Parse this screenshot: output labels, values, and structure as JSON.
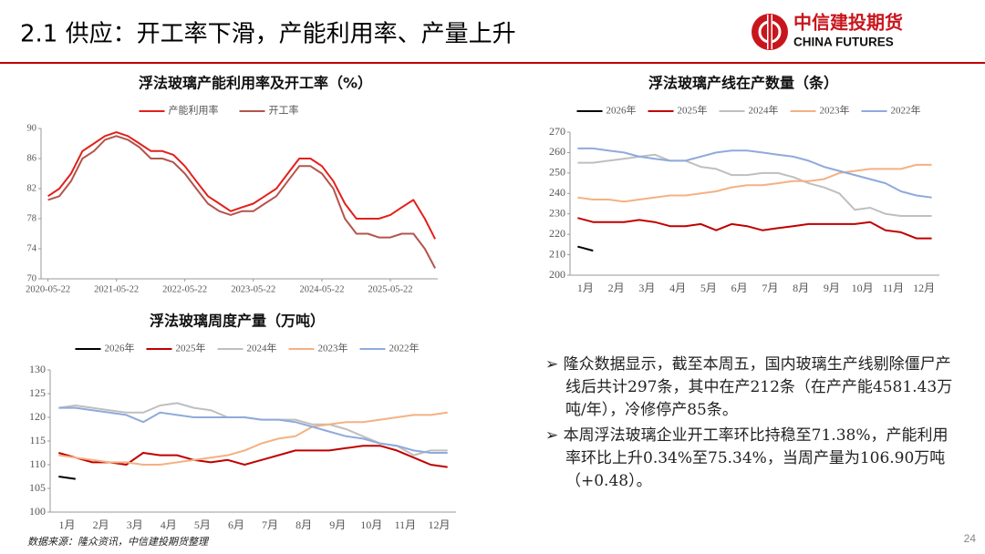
{
  "header": {
    "title": "2.1 供应：开工率下滑，产能利用率、产量上升",
    "logo_cn": "中信建投期货",
    "logo_en": "CHINA FUTURES"
  },
  "chart_data": [
    {
      "type": "line",
      "title": "浮法玻璃产能利用率及开工率（%）",
      "legend": "top",
      "x": [
        "2020-05-22",
        "2020-07-22",
        "2020-09-22",
        "2020-11-22",
        "2021-01-22",
        "2021-03-22",
        "2021-05-22",
        "2021-07-22",
        "2021-09-22",
        "2021-11-22",
        "2022-01-22",
        "2022-03-22",
        "2022-05-22",
        "2022-07-22",
        "2022-09-22",
        "2022-11-22",
        "2023-01-22",
        "2023-03-22",
        "2023-05-22",
        "2023-07-22",
        "2023-09-22",
        "2023-11-22",
        "2024-01-22",
        "2024-03-22",
        "2024-05-22",
        "2024-07-22",
        "2024-09-22",
        "2024-11-22",
        "2025-01-22",
        "2025-03-22",
        "2025-05-22",
        "2025-07-22",
        "2025-09-22",
        "2025-11-22",
        "2026-01-16"
      ],
      "xlim": [
        "2020-04-15",
        "2026-01-30"
      ],
      "xticks": [
        "2020-05-22",
        "2021-05-22",
        "2022-05-22",
        "2023-05-22",
        "2024-05-22",
        "2025-05-22"
      ],
      "ylim": [
        70,
        90
      ],
      "yticks": [
        70,
        74,
        78,
        82,
        86,
        90
      ],
      "series": [
        {
          "name": "产能利用率",
          "color": "#e3201b",
          "values": [
            81,
            82,
            84,
            87,
            88,
            89,
            89.5,
            89,
            88,
            87,
            87,
            86.5,
            85,
            83,
            81,
            80,
            79,
            79.5,
            80,
            81,
            82,
            84,
            86,
            86,
            85,
            83,
            80,
            78,
            78,
            78,
            78.5,
            79.5,
            80.5,
            78,
            75.3
          ]
        },
        {
          "name": "开工率",
          "color": "#b4544c",
          "values": [
            80.5,
            81,
            83,
            86,
            87,
            88.5,
            89,
            88.5,
            87.5,
            86,
            86,
            85.5,
            84,
            82,
            80,
            79,
            78.5,
            79,
            79,
            80,
            81,
            83,
            85,
            85,
            84,
            82,
            78,
            76,
            76,
            75.5,
            75.5,
            76,
            76,
            74,
            71.4
          ]
        }
      ]
    },
    {
      "type": "line",
      "title": "浮法玻璃产线在产数量（条）",
      "legend": "top",
      "categories": [
        "1月",
        null,
        "2月",
        null,
        "3月",
        null,
        "4月",
        null,
        "5月",
        null,
        "6月",
        null,
        "7月",
        null,
        "8月",
        null,
        "9月",
        null,
        "10月",
        null,
        "11月",
        null,
        "12月",
        null
      ],
      "ylim": [
        200,
        270
      ],
      "yticks": [
        200,
        210,
        220,
        230,
        240,
        250,
        260,
        270
      ],
      "series": [
        {
          "name": "2026年",
          "color": "#000000",
          "values": [
            214,
            212,
            null,
            null,
            null,
            null,
            null,
            null,
            null,
            null,
            null,
            null,
            null,
            null,
            null,
            null,
            null,
            null,
            null,
            null,
            null,
            null,
            null,
            null
          ]
        },
        {
          "name": "2025年",
          "color": "#c00000",
          "values": [
            228,
            226,
            226,
            226,
            227,
            226,
            224,
            224,
            225,
            222,
            225,
            224,
            222,
            223,
            224,
            225,
            225,
            225,
            225,
            226,
            222,
            221,
            218,
            218
          ]
        },
        {
          "name": "2024年",
          "color": "#bfbfbf",
          "values": [
            255,
            255,
            256,
            257,
            258,
            259,
            256,
            256,
            253,
            252,
            249,
            249,
            250,
            250,
            248,
            245,
            243,
            240,
            232,
            233,
            230,
            229,
            229,
            229
          ]
        },
        {
          "name": "2023年",
          "color": "#f4b183",
          "values": [
            238,
            237,
            237,
            236,
            237,
            238,
            239,
            239,
            240,
            241,
            243,
            244,
            244,
            245,
            246,
            246,
            247,
            250,
            251,
            252,
            252,
            252,
            254,
            254
          ]
        },
        {
          "name": "2022年",
          "color": "#8faadc",
          "values": [
            262,
            262,
            261,
            260,
            258,
            257,
            256,
            256,
            258,
            260,
            261,
            261,
            260,
            259,
            258,
            256,
            253,
            251,
            249,
            247,
            245,
            241,
            239,
            238
          ]
        }
      ]
    },
    {
      "type": "line",
      "title": "浮法玻璃周度产量（万吨）",
      "legend": "top",
      "categories": [
        "1月",
        null,
        "2月",
        null,
        "3月",
        null,
        "4月",
        null,
        "5月",
        null,
        "6月",
        null,
        "7月",
        null,
        "8月",
        null,
        "9月",
        null,
        "10月",
        null,
        "11月",
        null,
        "12月",
        null
      ],
      "ylim": [
        100,
        130
      ],
      "yticks": [
        100,
        105,
        110,
        115,
        120,
        125,
        130
      ],
      "series": [
        {
          "name": "2026年",
          "color": "#000000",
          "values": [
            107.5,
            107,
            null,
            null,
            null,
            null,
            null,
            null,
            null,
            null,
            null,
            null,
            null,
            null,
            null,
            null,
            null,
            null,
            null,
            null,
            null,
            null,
            null,
            null
          ]
        },
        {
          "name": "2025年",
          "color": "#c00000",
          "values": [
            112.5,
            111.5,
            110.5,
            110.5,
            110,
            112.5,
            112,
            112,
            111,
            110.5,
            111,
            110,
            111,
            112,
            113,
            113,
            113,
            113.5,
            114,
            114,
            113,
            111.5,
            110,
            109.5
          ]
        },
        {
          "name": "2024年",
          "color": "#bfbfbf",
          "values": [
            122,
            122.5,
            122,
            121.5,
            121,
            121,
            122.5,
            123,
            122,
            121.5,
            120,
            120,
            119.5,
            119.5,
            119.5,
            118.5,
            118.5,
            117.5,
            116,
            114.5,
            114,
            112,
            113,
            113
          ]
        },
        {
          "name": "2023年",
          "color": "#f4b183",
          "values": [
            112,
            111.5,
            111,
            110.5,
            110.5,
            110,
            110,
            110.5,
            111,
            111.5,
            112,
            113,
            114.5,
            115.5,
            116,
            118,
            118.5,
            119,
            119,
            119.5,
            120,
            120.5,
            120.5,
            121
          ]
        },
        {
          "name": "2022年",
          "color": "#8faadc",
          "values": [
            122,
            122,
            121.5,
            121,
            120.5,
            119,
            121,
            120.5,
            120,
            120,
            120,
            120,
            119.5,
            119.5,
            119,
            118,
            117,
            116,
            115.5,
            114.5,
            114,
            113,
            112.5,
            112.5
          ]
        }
      ]
    }
  ],
  "bullets": [
    "隆众数据显示，截至本周五，国内玻璃生产线剔除僵尸产线后共计297条，其中在产212条（在产产能4581.43万吨/年），冷修停产85条。",
    "本周浮法玻璃企业开工率环比持稳至71.38%，产能利用率环比上升0.34%至75.34%，当周产量为106.90万吨（+0.48）。"
  ],
  "source": "数据来源：隆众资讯，中信建投期货整理",
  "page_number": "24"
}
